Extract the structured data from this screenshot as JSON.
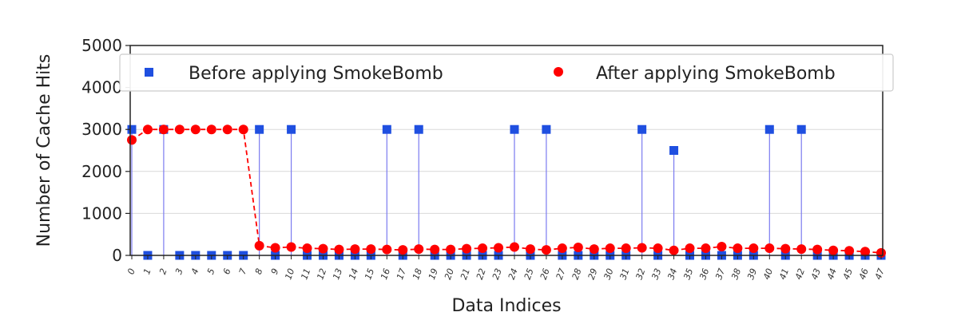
{
  "chart_data": {
    "type": "scatter",
    "xlabel": "Data Indices",
    "ylabel": "Number of Cache Hits",
    "ylim": [
      0,
      5000
    ],
    "yticks": [
      0,
      1000,
      2000,
      3000,
      4000,
      5000
    ],
    "grid": "horizontal",
    "legend_position": "top",
    "x": [
      0,
      1,
      2,
      3,
      4,
      5,
      6,
      7,
      8,
      9,
      10,
      11,
      12,
      13,
      14,
      15,
      16,
      17,
      18,
      19,
      20,
      21,
      22,
      23,
      24,
      25,
      26,
      27,
      28,
      29,
      30,
      31,
      32,
      33,
      34,
      35,
      36,
      37,
      38,
      39,
      40,
      41,
      42,
      43,
      44,
      45,
      46,
      47
    ],
    "series": [
      {
        "name": "Before applying SmokeBomb",
        "marker": "square",
        "color": "#1f4fe0",
        "stems": true,
        "values": [
          3000,
          0,
          3000,
          0,
          0,
          0,
          0,
          0,
          3000,
          0,
          3000,
          0,
          0,
          0,
          0,
          0,
          3000,
          0,
          3000,
          0,
          0,
          0,
          0,
          0,
          3000,
          0,
          3000,
          0,
          0,
          0,
          0,
          0,
          3000,
          0,
          2500,
          0,
          0,
          0,
          0,
          0,
          3000,
          0,
          3000,
          0,
          0,
          0,
          0,
          0
        ]
      },
      {
        "name": "After applying SmokeBomb",
        "marker": "circle",
        "color": "#ff0000",
        "dashed_line": true,
        "values": [
          2750,
          3000,
          3000,
          3000,
          3000,
          3000,
          3000,
          3000,
          230,
          180,
          200,
          170,
          160,
          140,
          150,
          150,
          140,
          130,
          150,
          140,
          140,
          160,
          170,
          180,
          200,
          150,
          130,
          170,
          190,
          150,
          170,
          170,
          180,
          170,
          120,
          170,
          170,
          210,
          170,
          170,
          170,
          160,
          150,
          140,
          120,
          110,
          90,
          60
        ]
      }
    ]
  }
}
